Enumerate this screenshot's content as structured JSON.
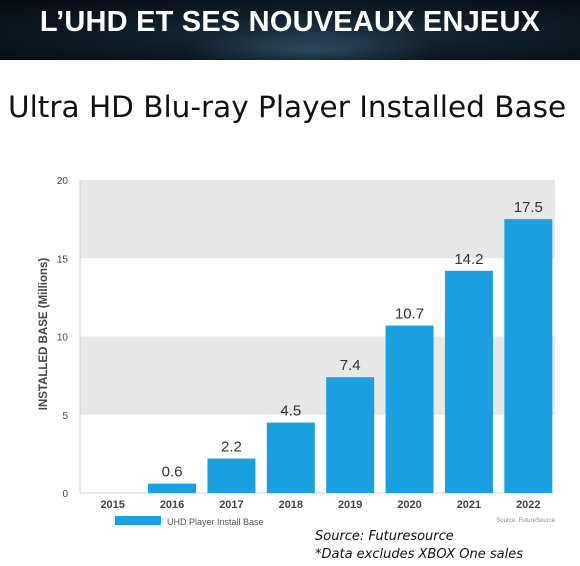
{
  "banner": {
    "title": "L’UHD ET SES NOUVEAUX ENJEUX"
  },
  "slide": {
    "title": "Ultra HD Blu-ray Player Installed Base"
  },
  "chart_data": {
    "type": "bar",
    "categories": [
      "2015",
      "2016",
      "2017",
      "2018",
      "2019",
      "2020",
      "2021",
      "2022"
    ],
    "series": [
      {
        "name": "UHD Player Install Base",
        "values": [
          0,
          0.6,
          2.2,
          4.5,
          7.4,
          10.7,
          14.2,
          17.5
        ]
      }
    ],
    "data_labels": [
      "",
      "0.6",
      "2.2",
      "4.5",
      "7.4",
      "10.7",
      "14.2",
      "17.5"
    ],
    "ylabel": "INSTALLED BASE (Millions)",
    "ylim": [
      0,
      20
    ],
    "yticks": [
      0,
      5,
      10,
      15,
      20
    ],
    "grid": "alternating horizontal bands",
    "legend_position": "bottom-left",
    "credit": "Source: FutureSource",
    "bar_color": "#1aa0e0",
    "band_color": "#e8e8e8"
  },
  "footer": {
    "source": "Source: Futuresource",
    "note": "*Data excludes XBOX One sales"
  }
}
